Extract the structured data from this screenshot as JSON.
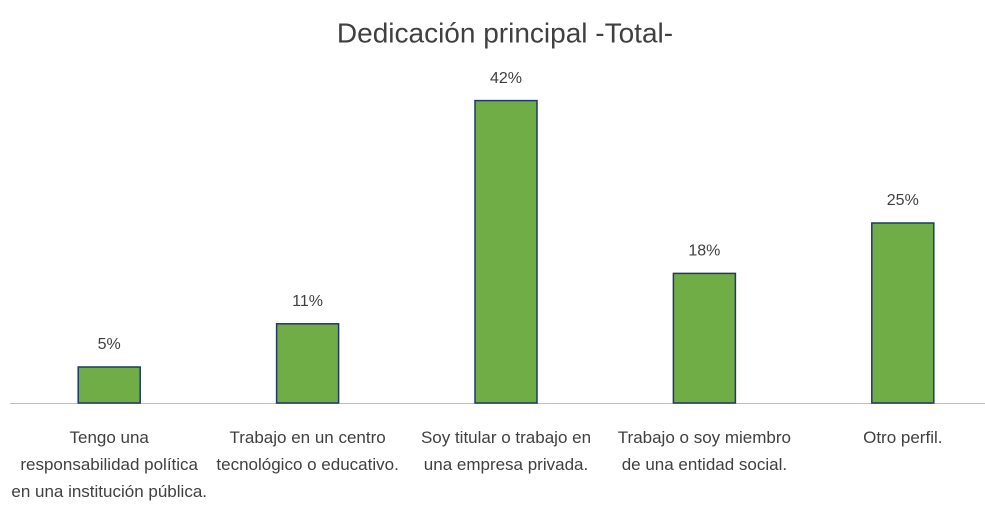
{
  "chart_data": {
    "type": "bar",
    "title": "Dedicación principal -Total-",
    "categories": [
      "Tengo una responsabilidad política en una institución pública.",
      "Trabajo en un centro tecnológico o educativo.",
      "Soy titular o trabajo en una empresa privada.",
      "Trabajo o soy miembro de una entidad social.",
      "Otro perfil."
    ],
    "values": [
      5,
      11,
      42,
      18,
      25
    ],
    "value_labels": [
      "5%",
      "11%",
      "42%",
      "18%",
      "25%"
    ],
    "color": "#70ad47"
  }
}
